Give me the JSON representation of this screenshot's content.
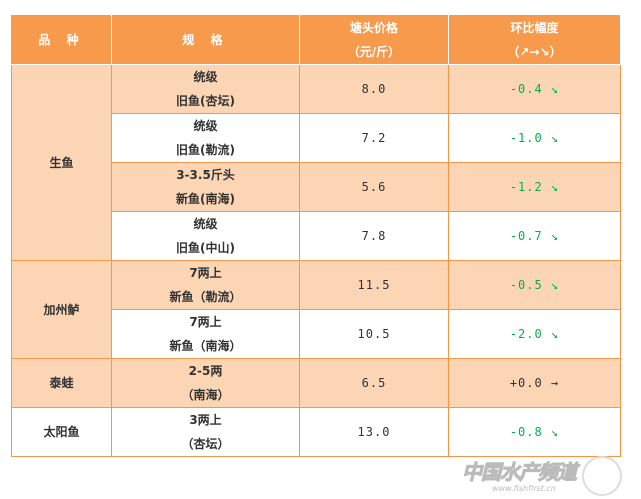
{
  "header": {
    "species": "品 种",
    "spec": "规 格",
    "price_line1": "塘头价格",
    "price_line2": "（元/斤）",
    "change_line1": "环比幅度",
    "change_line2": "（↗→↘）"
  },
  "colors": {
    "header": "#F79A4C",
    "row_alt": "#FCD5B5",
    "border": "#F79646",
    "down": "#00B050"
  },
  "groups": [
    {
      "species": "生鱼",
      "rows": [
        {
          "spec1": "统级",
          "spec2": "旧鱼(杏坛)",
          "price": "8.0",
          "change": "-0.4 ↘",
          "trend": "down"
        },
        {
          "spec1": "统级",
          "spec2": "旧鱼(勒流)",
          "price": "7.2",
          "change": "-1.0 ↘",
          "trend": "down"
        },
        {
          "spec1": "3-3.5斤头",
          "spec2": "新鱼(南海)",
          "price": "5.6",
          "change": "-1.2 ↘",
          "trend": "down"
        },
        {
          "spec1": "统级",
          "spec2": "旧鱼(中山)",
          "price": "7.8",
          "change": "-0.7 ↘",
          "trend": "down"
        }
      ]
    },
    {
      "species": "加州鲈",
      "rows": [
        {
          "spec1": "7两上",
          "spec2": "新鱼（勒流）",
          "price": "11.5",
          "change": "-0.5 ↘",
          "trend": "down"
        },
        {
          "spec1": "7两上",
          "spec2": "新鱼（南海）",
          "price": "10.5",
          "change": "-2.0 ↘",
          "trend": "down"
        }
      ]
    },
    {
      "species": "泰蛙",
      "rows": [
        {
          "spec1": "2-5两",
          "spec2": "（南海）",
          "price": "6.5",
          "change": "+0.0 →",
          "trend": "flat"
        }
      ]
    },
    {
      "species": "太阳鱼",
      "rows": [
        {
          "spec1": "3两上",
          "spec2": "（杏坛）",
          "price": "13.0",
          "change": "-0.8 ↘",
          "trend": "down"
        }
      ]
    }
  ],
  "watermark": {
    "text": "中国水产频道",
    "url": "www.fishfirst.cn"
  }
}
